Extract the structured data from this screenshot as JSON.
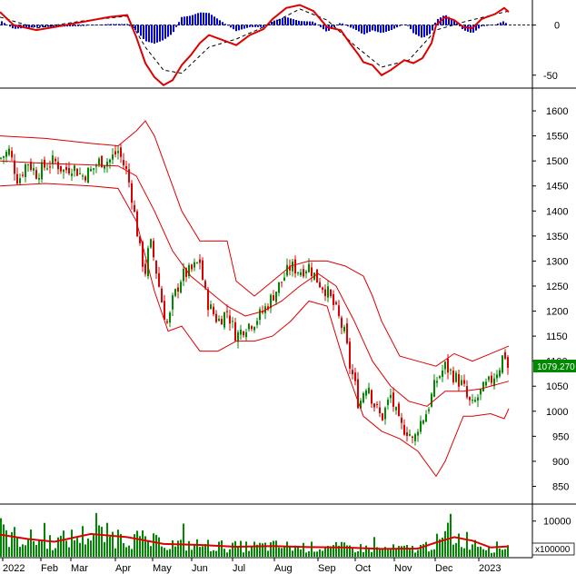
{
  "chart_data": [
    {
      "panel": "macd",
      "type": "line",
      "y_ticks": [
        0,
        -50
      ],
      "ylim": [
        -62,
        25
      ],
      "series": [
        {
          "role": "macd",
          "color": "#dd0000",
          "x": [
            0,
            15,
            40,
            60,
            90,
            120,
            140,
            150,
            160,
            170,
            180,
            190,
            200,
            210,
            220,
            230,
            245,
            260,
            275,
            290,
            300,
            315,
            330,
            345,
            360,
            375,
            385,
            395,
            400,
            410,
            420,
            430,
            445,
            455,
            465,
            475,
            480,
            490,
            500,
            510,
            520,
            530,
            545,
            555,
            560
          ],
          "values": [
            13,
            0,
            -5,
            -2,
            3,
            8,
            10,
            -12,
            -38,
            -52,
            -60,
            -55,
            -40,
            -30,
            -18,
            -10,
            -15,
            -20,
            -10,
            -4,
            6,
            17,
            20,
            14,
            -2,
            -5,
            -18,
            -30,
            -37,
            -40,
            -50,
            -45,
            -35,
            -38,
            -33,
            -18,
            0,
            8,
            5,
            -2,
            -3,
            6,
            11,
            17,
            13
          ]
        },
        {
          "role": "signal",
          "color": "#000000",
          "x": [
            0,
            40,
            90,
            140,
            160,
            180,
            200,
            230,
            260,
            300,
            330,
            360,
            390,
            420,
            450,
            480,
            510,
            560
          ],
          "values": [
            8,
            -3,
            4,
            9,
            -22,
            -45,
            -48,
            -22,
            -14,
            2,
            16,
            5,
            -20,
            -42,
            -35,
            -5,
            3,
            14
          ]
        }
      ],
      "histogram_colors": {
        "positive": "#0000dd",
        "negative": "#0000dd"
      }
    },
    {
      "panel": "price",
      "type": "candlestick",
      "y_ticks": [
        850,
        900,
        950,
        1000,
        1050,
        1100,
        1150,
        1200,
        1250,
        1300,
        1350,
        1400,
        1450,
        1500,
        1550,
        1600
      ],
      "ylim": [
        820,
        1640
      ],
      "last_price_label": "1079.270",
      "last_price_value": 1079.27,
      "x_categories": [
        "2022",
        "Feb",
        "Mar",
        "Apr",
        "May",
        "Jun",
        "Jul",
        "Aug",
        "Sep",
        "Oct",
        "Nov",
        "Dec",
        "2023"
      ],
      "close_path": {
        "x": [
          0,
          10,
          20,
          30,
          40,
          50,
          60,
          70,
          80,
          90,
          100,
          110,
          120,
          130,
          140,
          145,
          150,
          155,
          160,
          165,
          170,
          175,
          180,
          185,
          190,
          200,
          210,
          220,
          225,
          230,
          240,
          250,
          260,
          270,
          280,
          290,
          300,
          310,
          320,
          330,
          340,
          350,
          360,
          370,
          380,
          385,
          390,
          395,
          400,
          405,
          410,
          420,
          430,
          440,
          450,
          455,
          460,
          470,
          480,
          490,
          500,
          510,
          515,
          520,
          530,
          540,
          550,
          555,
          560
        ],
        "values": [
          1505,
          1520,
          1460,
          1500,
          1475,
          1490,
          1500,
          1480,
          1490,
          1470,
          1480,
          1500,
          1500,
          1520,
          1475,
          1430,
          1370,
          1310,
          1280,
          1340,
          1300,
          1250,
          1200,
          1170,
          1220,
          1270,
          1280,
          1300,
          1240,
          1210,
          1180,
          1200,
          1150,
          1170,
          1180,
          1200,
          1230,
          1260,
          1290,
          1280,
          1290,
          1260,
          1240,
          1200,
          1150,
          1090,
          1060,
          1010,
          1040,
          1060,
          1020,
          985,
          1030,
          970,
          960,
          935,
          970,
          1000,
          1060,
          1090,
          1070,
          1050,
          1020,
          1010,
          1040,
          1060,
          1090,
          1120,
          1079.27
        ]
      },
      "bollinger_upper": {
        "x": [
          0,
          50,
          100,
          130,
          150,
          160,
          170,
          180,
          200,
          220,
          240,
          250,
          260,
          280,
          300,
          320,
          340,
          360,
          380,
          400,
          410,
          420,
          440,
          460,
          480,
          500,
          520,
          540,
          560
        ],
        "values": [
          1550,
          1545,
          1535,
          1530,
          1560,
          1580,
          1550,
          1500,
          1400,
          1340,
          1340,
          1340,
          1260,
          1230,
          1260,
          1290,
          1300,
          1300,
          1290,
          1270,
          1230,
          1180,
          1110,
          1100,
          1090,
          1115,
          1100,
          1115,
          1130
        ]
      },
      "bollinger_middle": {
        "x": [
          0,
          50,
          100,
          130,
          150,
          170,
          190,
          210,
          230,
          250,
          270,
          290,
          310,
          330,
          350,
          370,
          390,
          410,
          430,
          450,
          470,
          490,
          510,
          530,
          560
        ],
        "values": [
          1500,
          1495,
          1492,
          1490,
          1470,
          1400,
          1320,
          1270,
          1240,
          1210,
          1190,
          1200,
          1220,
          1250,
          1275,
          1250,
          1180,
          1100,
          1050,
          1020,
          1010,
          1040,
          1040,
          1045,
          1060
        ]
      },
      "bollinger_lower": {
        "x": [
          0,
          50,
          100,
          130,
          150,
          170,
          185,
          200,
          220,
          240,
          260,
          280,
          300,
          320,
          340,
          360,
          380,
          400,
          420,
          440,
          460,
          480,
          490,
          510,
          520,
          540,
          555,
          560
        ],
        "values": [
          1450,
          1455,
          1450,
          1445,
          1380,
          1240,
          1160,
          1170,
          1120,
          1120,
          1140,
          1140,
          1150,
          1180,
          1220,
          1210,
          1090,
          990,
          960,
          945,
          920,
          870,
          900,
          990,
          990,
          995,
          985,
          1005
        ]
      },
      "colors": {
        "up": "#008800",
        "down": "#dd0000",
        "bands": "#dd0000",
        "label_bg": "#008800"
      }
    },
    {
      "panel": "volume",
      "type": "bar",
      "y_ticks": [
        10000
      ],
      "unit_label": "x100000",
      "ylim": [
        0,
        14000
      ],
      "ma": {
        "x": [
          0,
          30,
          60,
          100,
          140,
          180,
          220,
          260,
          300,
          340,
          380,
          420,
          460,
          480,
          500,
          520,
          540,
          560
        ],
        "values": [
          6200,
          5000,
          4200,
          6400,
          5500,
          3600,
          3300,
          2800,
          3000,
          2700,
          2600,
          2200,
          2300,
          4000,
          5500,
          4500,
          2600,
          2900
        ]
      },
      "colors": {
        "bars": "#008800",
        "ma": "#dd0000"
      }
    }
  ],
  "ui": {
    "zero_tick": "0",
    "minus50_tick": "-50"
  }
}
